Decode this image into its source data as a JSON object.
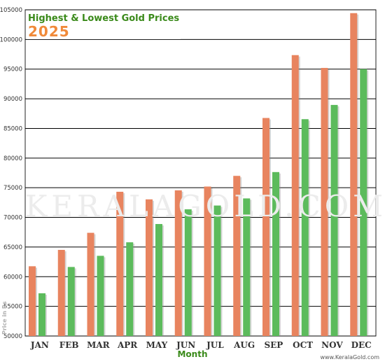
{
  "colors": {
    "high_bar": "#e8845f",
    "low_bar": "#5cbb5c",
    "title": "#3a8a1a",
    "year": "#f08a3a",
    "axis_text": "#333333"
  },
  "watermark": "KERALAGOLD.COM",
  "credit": "www.KeralaGold.com",
  "chart_data": {
    "type": "bar",
    "title": "Highest & Lowest Gold Prices",
    "subtitle": "2025",
    "xlabel": "Month",
    "ylabel": "Price in Rs",
    "ylim": [
      50000,
      105000
    ],
    "yticks": [
      "50000",
      "55000",
      "60000",
      "65000",
      "70000",
      "75000",
      "80000",
      "85000",
      "90000",
      "95000",
      "100000",
      "105000"
    ],
    "grid": true,
    "categories": [
      "Jan",
      "Feb",
      "Mar",
      "Apr",
      "May",
      "Jun",
      "Jul",
      "Aug",
      "Sep",
      "Oct",
      "Nov",
      "Dec"
    ],
    "series": [
      {
        "values": [
          61760,
          64520,
          67400,
          74320,
          73040,
          74560,
          75200,
          77000,
          86760,
          97360,
          95200,
          104440
        ]
      },
      {
        "values": [
          57200,
          61640,
          63520,
          65800,
          68880,
          71360,
          72000,
          73200,
          77640,
          86560,
          88960,
          95000
        ]
      }
    ]
  }
}
